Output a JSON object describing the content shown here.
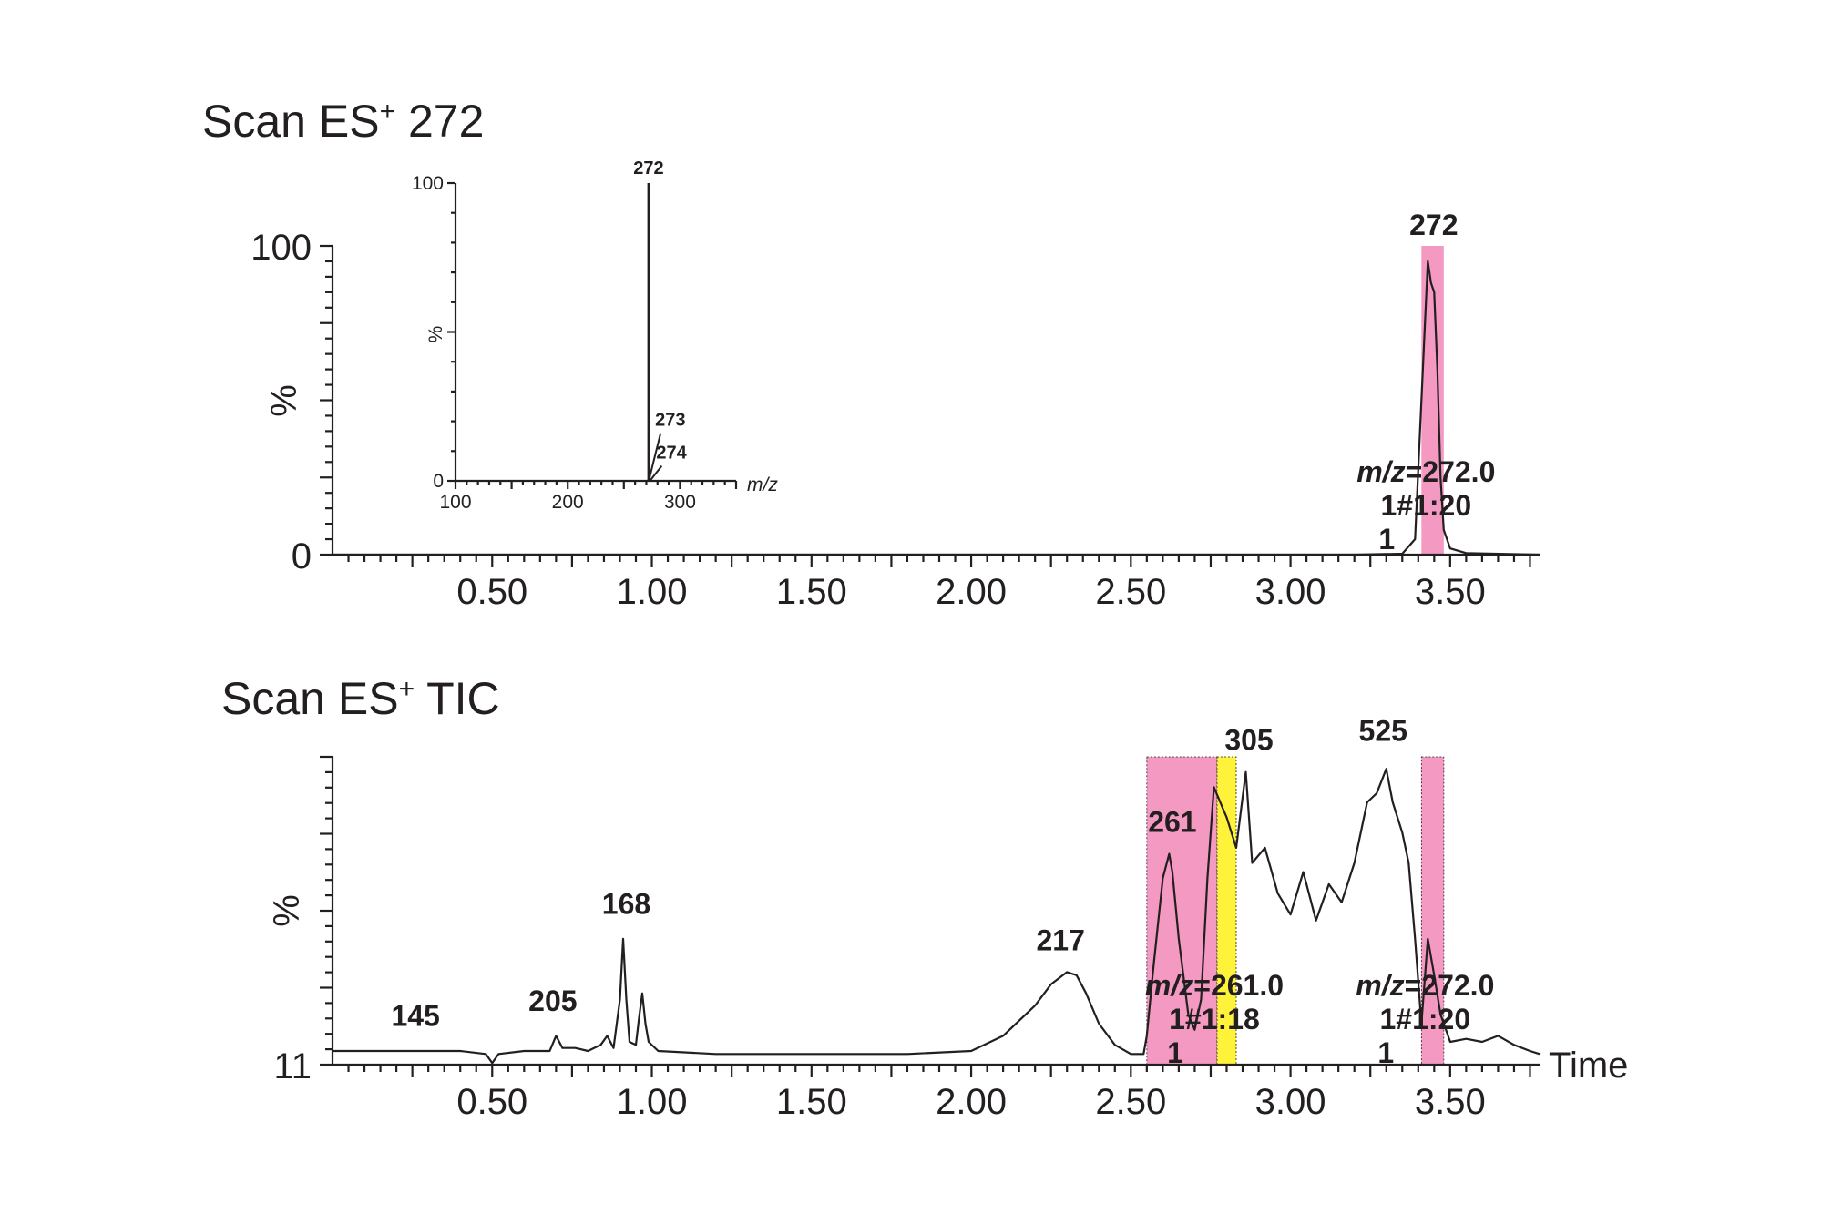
{
  "chart_data": [
    {
      "type": "line",
      "title": "Scan ES",
      "title_sup": "+",
      "title_suffix": " 272",
      "xlabel": "",
      "ylabel": "%",
      "xlim": [
        0.0,
        3.78
      ],
      "ylim": [
        0,
        100
      ],
      "xticks": [
        "0.50",
        "1.00",
        "1.50",
        "2.00",
        "2.50",
        "3.00",
        "3.50"
      ],
      "yticks": [
        "0",
        "100"
      ],
      "series": [
        {
          "x": [
            0.0,
            0.5,
            1.0,
            1.5,
            2.0,
            2.5,
            3.0,
            3.2,
            3.35,
            3.39,
            3.41,
            3.43,
            3.44,
            3.45,
            3.46,
            3.47,
            3.48,
            3.5,
            3.55,
            3.78
          ],
          "y": [
            0,
            0,
            0,
            0,
            0,
            0,
            0,
            0,
            0.3,
            5,
            50,
            95,
            88,
            85,
            60,
            25,
            8,
            2,
            0.5,
            0
          ]
        }
      ],
      "highlights": [
        {
          "x0": 3.41,
          "x1": 3.48,
          "color": "#f49ac2"
        }
      ],
      "peak_labels": [
        {
          "x": 3.44,
          "y": 97,
          "text": "272"
        }
      ],
      "annotation": {
        "line1_italic": "m/z",
        "line1_rest": "=272.0",
        "line2": "1#1:20",
        "line3": "1"
      },
      "inset": {
        "type": "bar",
        "xlabel": "m/z",
        "ylabel": "%",
        "xlim": [
          100,
          350
        ],
        "ylim": [
          0,
          100
        ],
        "xticks": [
          "100",
          "200",
          "300"
        ],
        "yticks": [
          "0",
          "100"
        ],
        "x": [
          272,
          273,
          274
        ],
        "values": [
          100,
          16,
          5
        ],
        "labels": [
          "272",
          "273",
          "274"
        ]
      }
    },
    {
      "type": "line",
      "title": "Scan ES",
      "title_sup": "+",
      "title_suffix": " TIC",
      "xlabel": "Time",
      "ylabel": "%",
      "xlim": [
        0.0,
        3.78
      ],
      "ylim": [
        0,
        100
      ],
      "xticks": [
        "0.50",
        "1.00",
        "1.50",
        "2.00",
        "2.50",
        "3.00",
        "3.50"
      ],
      "yticks": [
        "11"
      ],
      "series": [
        {
          "x": [
            0.0,
            0.2,
            0.4,
            0.48,
            0.5,
            0.52,
            0.6,
            0.68,
            0.7,
            0.72,
            0.74,
            0.76,
            0.8,
            0.84,
            0.86,
            0.88,
            0.9,
            0.91,
            0.92,
            0.93,
            0.95,
            0.96,
            0.97,
            0.98,
            0.99,
            1.02,
            1.2,
            1.5,
            1.8,
            2.0,
            2.1,
            2.2,
            2.25,
            2.3,
            2.33,
            2.36,
            2.4,
            2.45,
            2.5,
            2.54,
            2.55,
            2.57,
            2.6,
            2.62,
            2.63,
            2.65,
            2.68,
            2.7,
            2.72,
            2.74,
            2.76,
            2.78,
            2.8,
            2.83,
            2.86,
            2.88,
            2.92,
            2.96,
            3.0,
            3.04,
            3.08,
            3.12,
            3.16,
            3.2,
            3.24,
            3.27,
            3.3,
            3.32,
            3.35,
            3.37,
            3.39,
            3.41,
            3.43,
            3.45,
            3.47,
            3.5,
            3.55,
            3.6,
            3.65,
            3.7,
            3.75,
            3.78
          ],
          "y": [
            3,
            3,
            3,
            2,
            -1,
            2,
            3,
            3,
            8,
            4,
            4,
            4,
            3,
            5,
            8,
            4,
            20,
            40,
            20,
            6,
            5,
            14,
            22,
            12,
            6,
            3,
            2,
            2,
            2,
            3,
            8,
            18,
            25,
            29,
            28,
            22,
            12,
            5,
            2,
            2,
            8,
            30,
            60,
            68,
            62,
            40,
            15,
            10,
            20,
            60,
            90,
            85,
            80,
            70,
            95,
            65,
            70,
            55,
            48,
            62,
            46,
            58,
            52,
            65,
            85,
            88,
            96,
            85,
            75,
            65,
            40,
            12,
            40,
            28,
            15,
            6,
            7,
            6,
            8,
            5,
            3,
            2
          ]
        }
      ],
      "highlights": [
        {
          "x0": 2.55,
          "x1": 2.77,
          "color": "#f49ac2"
        },
        {
          "x0": 2.77,
          "x1": 2.83,
          "color": "#fff23a"
        },
        {
          "x0": 3.41,
          "x1": 3.48,
          "color": "#f49ac2"
        }
      ],
      "peak_labels": [
        {
          "x": 0.26,
          "y": 7,
          "text": "145"
        },
        {
          "x": 0.69,
          "y": 12,
          "text": "205"
        },
        {
          "x": 0.92,
          "y": 44,
          "text": "168"
        },
        {
          "x": 2.28,
          "y": 32,
          "text": "217"
        },
        {
          "x": 2.63,
          "y": 71,
          "text": "261"
        },
        {
          "x": 2.87,
          "y": 98,
          "text": "305"
        },
        {
          "x": 3.29,
          "y": 101,
          "text": "525"
        }
      ],
      "annotations": [
        {
          "x": 2.77,
          "line1_italic": "m/z",
          "line1_rest": "=261.0",
          "line2": "1#1:18",
          "line3": "1"
        },
        {
          "x": 3.43,
          "line1_italic": "m/z",
          "line1_rest": "=272.0",
          "line2": "1#1:20",
          "line3": "1"
        }
      ]
    }
  ]
}
